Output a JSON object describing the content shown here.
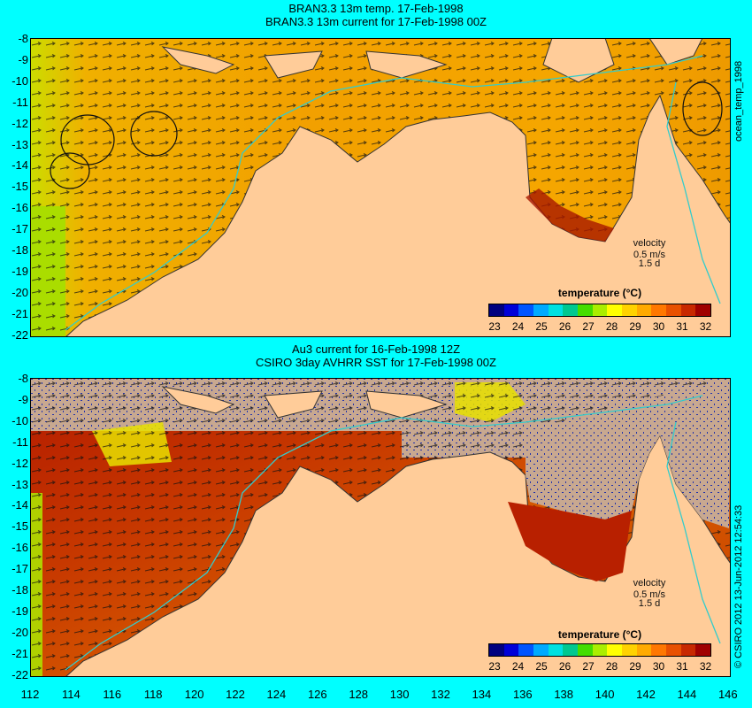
{
  "top": {
    "title_line1": "BRAN3.3 13m temp. 17-Feb-1998",
    "title_line2": "BRAN3.3 13m current for 17-Feb-1998 00Z"
  },
  "bottom": {
    "title_line1": "Au3 current for 16-Feb-1998 12Z",
    "title_line2": "CSIRO 3day AVHRR SST for 17-Feb-1998 00Z"
  },
  "side_label_top": "ocean_temp_1998",
  "side_label_bottom": "© CSIRO 2012  13-Jun-2012 12:54:33",
  "velocity": {
    "label": "velocity",
    "scale": "0.5 m/s",
    "days": "1.5 d"
  },
  "colorbar": {
    "title": "temperature (°C)",
    "ticks": [
      "23",
      "24",
      "25",
      "26",
      "27",
      "28",
      "29",
      "30",
      "31",
      "32"
    ],
    "colors": [
      "#00007f",
      "#0000d8",
      "#0055ff",
      "#00aaff",
      "#00e0e0",
      "#00c890",
      "#44dd00",
      "#aaee00",
      "#ffff00",
      "#ffd200",
      "#ffaa00",
      "#ff7700",
      "#e85000",
      "#c82800",
      "#a00000"
    ]
  },
  "y_ticks": [
    "-8",
    "-9",
    "-10",
    "-11",
    "-12",
    "-13",
    "-14",
    "-15",
    "-16",
    "-17",
    "-18",
    "-19",
    "-20",
    "-21",
    "-22"
  ],
  "x_ticks": [
    "112",
    "114",
    "116",
    "118",
    "120",
    "122",
    "124",
    "126",
    "128",
    "130",
    "132",
    "134",
    "136",
    "138",
    "140",
    "142",
    "144",
    "146"
  ],
  "map_colors": {
    "land": "#ffcc99",
    "background": "#00ffff",
    "coast": "#222222",
    "isobath": "#33cccc",
    "nodata": "#c8a890"
  }
}
